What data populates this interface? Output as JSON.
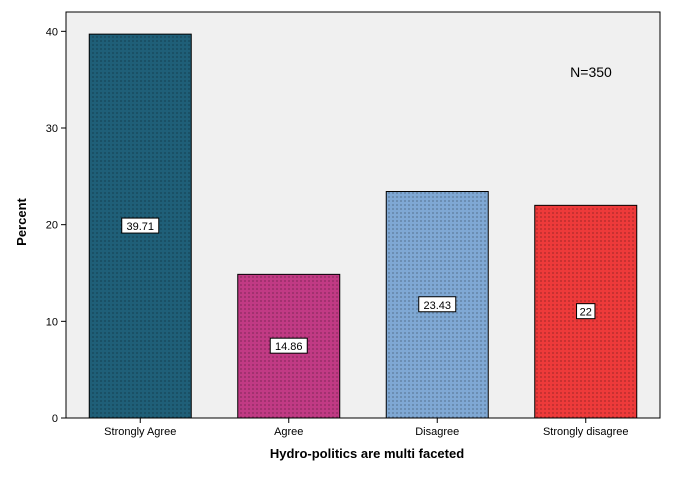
{
  "chart_data": {
    "type": "bar",
    "categories": [
      "Strongly Agree",
      "Agree",
      "Disagree",
      "Strongly disagree"
    ],
    "values": [
      39.71,
      14.86,
      23.43,
      22
    ],
    "data_labels": [
      "39.71",
      "14.86",
      "23.43",
      "22"
    ],
    "colors": [
      "#1f5f78",
      "#c13a84",
      "#7fa8d4",
      "#ee3a3a"
    ],
    "xlabel": "Hydro-politics are multi faceted",
    "ylabel": "Percent",
    "ylim": [
      0,
      42
    ],
    "yticks": [
      0,
      10,
      20,
      30,
      40
    ],
    "ytick_labels": [
      "0",
      "10",
      "20",
      "30",
      "40"
    ],
    "annotation": "N=350",
    "plot_background": "#f0f0f0",
    "grid": false
  }
}
